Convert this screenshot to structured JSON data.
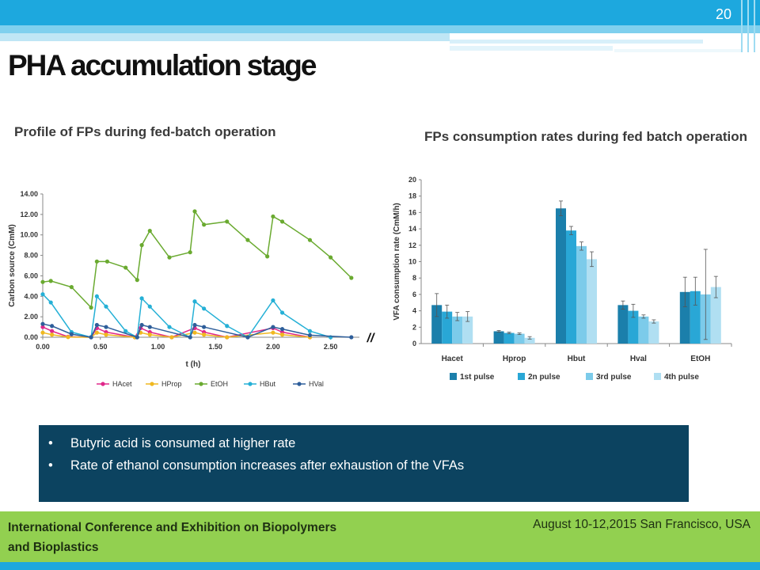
{
  "slide": {
    "number": "20",
    "title": "PHA accumulation stage",
    "subtitle_left": "Profile of FPs during fed-batch operation",
    "subtitle_right": "FPs consumption rates during fed batch operation",
    "bullets": [
      "Butyric acid is consumed at higher rate",
      "Rate of ethanol consumption increases after exhaustion of the VFAs"
    ],
    "footer": {
      "conference": "International Conference and Exhibition on Biopolymers and Bioplastics",
      "date_location": "August 10-12,2015 San Francisco, USA"
    }
  },
  "colors": {
    "top_bar": "#1da8de",
    "footer_bar": "#92d050",
    "callout_bg": "#0c4360"
  },
  "chart_data": [
    {
      "type": "line",
      "title": "",
      "xlabel": "t (h)",
      "ylabel": "Carbon source (CmM)",
      "xlim": [
        0,
        2.75
      ],
      "ylim": [
        0,
        14
      ],
      "xticks": [
        "0.00",
        "0.50",
        "1.00",
        "1.50",
        "2.00",
        "2.50"
      ],
      "yticks": [
        "0.00",
        "2.00",
        "4.00",
        "6.00",
        "8.00",
        "10.00",
        "12.00",
        "14.00"
      ],
      "break_marker": "//",
      "legend_position": "bottom",
      "series": [
        {
          "name": "HAcet",
          "color": "#e0288a",
          "x": [
            0,
            0.08,
            0.22,
            0.42,
            0.47,
            0.55,
            0.8,
            0.85,
            0.93,
            1.12,
            1.32,
            1.4,
            1.6,
            2.0,
            2.08,
            2.32
          ],
          "y": [
            1.0,
            0.6,
            0.05,
            0.0,
            0.9,
            0.5,
            0.0,
            0.9,
            0.5,
            0.0,
            0.9,
            0.5,
            0.0,
            0.9,
            0.5,
            0.0
          ]
        },
        {
          "name": "HProp",
          "color": "#f0b820",
          "x": [
            0,
            0.08,
            0.22,
            0.42,
            0.47,
            0.55,
            0.8,
            0.85,
            0.93,
            1.12,
            1.32,
            1.4,
            1.6,
            2.0,
            2.08,
            2.32
          ],
          "y": [
            0.45,
            0.25,
            0.02,
            0.0,
            0.45,
            0.25,
            0.0,
            0.45,
            0.25,
            0.0,
            0.45,
            0.25,
            0.0,
            0.45,
            0.25,
            0.0
          ]
        },
        {
          "name": "EtOH",
          "color": "#6aaa30",
          "x": [
            0,
            0.07,
            0.25,
            0.42,
            0.47,
            0.56,
            0.72,
            0.82,
            0.86,
            0.93,
            1.1,
            1.28,
            1.32,
            1.4,
            1.6,
            1.78,
            1.95,
            2.0,
            2.08,
            2.32,
            2.5,
            2.68
          ],
          "y": [
            5.4,
            5.5,
            4.9,
            2.9,
            7.4,
            7.4,
            6.8,
            5.6,
            9.0,
            10.4,
            7.8,
            8.3,
            12.3,
            11.0,
            11.3,
            9.5,
            7.9,
            11.8,
            11.3,
            9.5,
            7.8,
            5.8
          ]
        },
        {
          "name": "HBut",
          "color": "#25b0d6",
          "x": [
            0,
            0.07,
            0.25,
            0.42,
            0.47,
            0.55,
            0.72,
            0.82,
            0.86,
            0.93,
            1.1,
            1.28,
            1.32,
            1.4,
            1.6,
            1.78,
            2.0,
            2.08,
            2.32,
            2.5
          ],
          "y": [
            4.2,
            3.4,
            0.5,
            0.0,
            4.0,
            3.0,
            0.6,
            0.0,
            3.8,
            3.0,
            1.0,
            0.0,
            3.5,
            2.8,
            1.1,
            0.0,
            3.6,
            2.4,
            0.6,
            0.0
          ]
        },
        {
          "name": "HVal",
          "color": "#2e5e9a",
          "x": [
            0,
            0.08,
            0.25,
            0.42,
            0.47,
            0.55,
            0.82,
            0.86,
            0.93,
            1.28,
            1.32,
            1.4,
            1.78,
            2.0,
            2.08,
            2.32,
            2.68
          ],
          "y": [
            1.3,
            1.1,
            0.3,
            0.0,
            1.2,
            1.0,
            0.0,
            1.2,
            1.0,
            0.0,
            1.2,
            1.0,
            0.0,
            1.0,
            0.8,
            0.2,
            0.0
          ]
        }
      ]
    },
    {
      "type": "bar",
      "title": "",
      "xlabel": "",
      "ylabel": "VFA consumption rate (CmM/h)",
      "ylim": [
        0,
        20
      ],
      "yticks": [
        "0",
        "2",
        "4",
        "6",
        "8",
        "10",
        "12",
        "14",
        "16",
        "18",
        "20"
      ],
      "categories": [
        "Hacet",
        "Hprop",
        "Hbut",
        "Hval",
        "EtOH"
      ],
      "legend_position": "bottom",
      "series": [
        {
          "name": "1st pulse",
          "color": "#1b7fab",
          "values": [
            4.7,
            1.5,
            16.5,
            4.7,
            6.3
          ],
          "errors": [
            1.4,
            0.1,
            0.9,
            0.5,
            1.8
          ]
        },
        {
          "name": "2n pulse",
          "color": "#29a7d6",
          "values": [
            3.9,
            1.3,
            13.8,
            4.0,
            6.4
          ],
          "errors": [
            0.8,
            0.1,
            0.5,
            0.8,
            1.7
          ]
        },
        {
          "name": "3rd pulse",
          "color": "#7ccbea",
          "values": [
            3.3,
            1.2,
            11.9,
            3.3,
            6.0
          ],
          "errors": [
            0.5,
            0.1,
            0.5,
            0.2,
            5.5
          ]
        },
        {
          "name": "4th pulse",
          "color": "#b0dff2",
          "values": [
            3.3,
            0.7,
            10.3,
            2.7,
            6.9
          ],
          "errors": [
            0.6,
            0.15,
            0.9,
            0.2,
            1.3
          ]
        }
      ]
    }
  ]
}
